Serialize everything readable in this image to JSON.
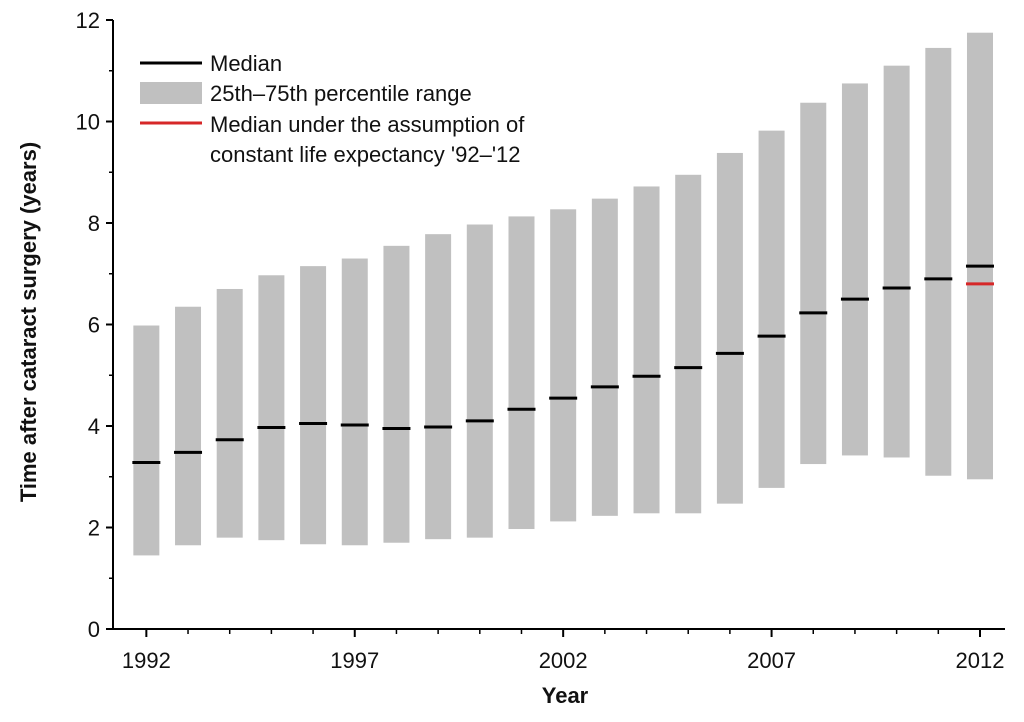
{
  "chart_data": {
    "type": "bar",
    "xlabel": "Year",
    "ylabel": "Time after cataract surgery (years)",
    "ylim": [
      0,
      12
    ],
    "yticks": [
      "0",
      "2",
      "4",
      "6",
      "8",
      "10",
      "12"
    ],
    "xticks": [
      "1992",
      "1997",
      "2002",
      "2007",
      "2012"
    ],
    "xrange": [
      1991.2,
      2012.6
    ],
    "years": [
      1992,
      1993,
      1994,
      1995,
      1996,
      1997,
      1998,
      1999,
      2000,
      2001,
      2002,
      2003,
      2004,
      2005,
      2006,
      2007,
      2008,
      2009,
      2010,
      2011,
      2012
    ],
    "series": [
      {
        "name": "25th–75th percentile range",
        "color": "#c0c0c0",
        "low": [
          1.45,
          1.65,
          1.8,
          1.75,
          1.67,
          1.65,
          1.7,
          1.77,
          1.8,
          1.97,
          2.12,
          2.23,
          2.28,
          2.28,
          2.47,
          2.78,
          3.25,
          3.42,
          3.38,
          3.02,
          2.95
        ],
        "high": [
          5.98,
          6.35,
          6.7,
          6.97,
          7.15,
          7.3,
          7.55,
          7.78,
          7.97,
          8.13,
          8.27,
          8.48,
          8.72,
          8.95,
          9.38,
          9.82,
          10.37,
          10.75,
          11.1,
          11.45,
          11.75
        ]
      },
      {
        "name": "Median",
        "color": "#000000",
        "values": [
          3.28,
          3.48,
          3.73,
          3.97,
          4.05,
          4.02,
          3.95,
          3.98,
          4.1,
          4.33,
          4.55,
          4.77,
          4.98,
          5.15,
          5.43,
          5.77,
          6.23,
          6.5,
          6.72,
          6.9,
          7.15
        ]
      },
      {
        "name": "Median under the assumption of constant life expectancy '92–'12",
        "color": "#d62728",
        "x": [
          2012
        ],
        "values": [
          6.8
        ]
      }
    ],
    "legend": {
      "position": "top-left",
      "entries": [
        {
          "label": "Median",
          "color": "#000000",
          "marker": "line"
        },
        {
          "label": "25th–75th percentile range",
          "color": "#c0c0c0",
          "marker": "box"
        },
        {
          "label": "Median under the assumption of",
          "label_line2": "constant life expectancy '92–'12",
          "color": "#d62728",
          "marker": "line"
        }
      ]
    }
  }
}
